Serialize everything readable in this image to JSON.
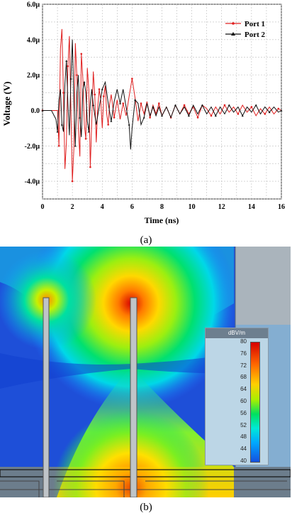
{
  "chart_data": {
    "type": "line",
    "xlabel": "Time (ns)",
    "ylabel": "Voltage (V)",
    "xlim": [
      0,
      16
    ],
    "ylim": [
      -5e-06,
      6e-06
    ],
    "x_ticks": [
      "0",
      "2",
      "4",
      "6",
      "8",
      "10",
      "12",
      "14",
      "16"
    ],
    "y_ticks": [
      "-4.0μ",
      "-2.0μ",
      "0.0",
      "2.0μ",
      "4.0μ",
      "6.0μ"
    ],
    "grid": true,
    "legend_position": "top-right",
    "series": [
      {
        "name": "Port 1",
        "color": "#e02020",
        "marker": "circle",
        "x": [
          0.0,
          0.6,
          1.0,
          1.1,
          1.2,
          1.3,
          1.4,
          1.5,
          1.6,
          1.7,
          1.8,
          1.9,
          2.0,
          2.1,
          2.2,
          2.3,
          2.4,
          2.5,
          2.6,
          2.7,
          2.8,
          2.9,
          3.0,
          3.1,
          3.2,
          3.3,
          3.4,
          3.5,
          3.6,
          3.7,
          3.8,
          3.9,
          4.0,
          4.1,
          4.2,
          4.3,
          4.4,
          4.5,
          4.6,
          4.8,
          5.0,
          5.2,
          5.4,
          5.6,
          5.8,
          6.0,
          6.2,
          6.4,
          6.6,
          6.8,
          7.0,
          7.2,
          7.4,
          7.6,
          7.8,
          8.0,
          8.3,
          8.6,
          8.9,
          9.2,
          9.5,
          9.8,
          10.1,
          10.4,
          10.7,
          11.0,
          11.3,
          11.6,
          11.9,
          12.2,
          12.5,
          12.8,
          13.1,
          13.4,
          13.7,
          14.0,
          14.3,
          14.6,
          14.9,
          15.2,
          15.5,
          15.8,
          16.0
        ],
        "y": [
          0.0,
          0.0,
          0.0,
          -2e-06,
          3.5e-06,
          4.6e-06,
          1e-06,
          -3.3e-06,
          -1.8e-06,
          2.5e-06,
          4.2e-06,
          2e-07,
          -4e-06,
          -2.2e-06,
          3.8e-06,
          2e-06,
          -1e-06,
          -2.6e-06,
          3.2e-06,
          1.8e-06,
          -8e-07,
          -1.6e-06,
          2.4e-06,
          1.2e-06,
          -3.2e-06,
          -6e-07,
          2.2e-06,
          9e-07,
          -1.8e-06,
          2e-07,
          1.2e-06,
          6e-07,
          -1e-06,
          8e-07,
          1.4e-06,
          -2e-07,
          -8e-07,
          4e-07,
          9e-07,
          -4e-07,
          6e-07,
          -5e-07,
          4e-07,
          -3e-07,
          8e-07,
          1.8e-06,
          7e-07,
          -6e-07,
          4e-07,
          -2e-07,
          5e-07,
          -4e-07,
          3e-07,
          -2e-07,
          4e-07,
          -3e-07,
          2e-07,
          -4e-07,
          3e-07,
          -2e-07,
          3e-07,
          -2e-07,
          2e-07,
          -4e-07,
          3e-07,
          1e-07,
          -3e-07,
          2e-07,
          -2e-07,
          3e-07,
          -1e-07,
          2e-07,
          -2e-07,
          3e-07,
          -1e-07,
          2e-07,
          -3e-07,
          1e-07,
          -2e-07,
          2e-07,
          -2e-07,
          1e-07,
          0.0
        ]
      },
      {
        "name": "Port 2",
        "color": "#111111",
        "marker": "triangle",
        "x": [
          0.0,
          0.6,
          0.9,
          1.0,
          1.1,
          1.2,
          1.3,
          1.4,
          1.5,
          1.6,
          1.7,
          1.8,
          1.9,
          2.0,
          2.1,
          2.2,
          2.3,
          2.4,
          2.5,
          2.6,
          2.7,
          2.8,
          2.9,
          3.0,
          3.1,
          3.2,
          3.3,
          3.4,
          3.6,
          3.8,
          4.0,
          4.2,
          4.4,
          4.6,
          4.8,
          5.0,
          5.2,
          5.4,
          5.6,
          5.8,
          5.9,
          6.0,
          6.2,
          6.4,
          6.6,
          6.8,
          7.0,
          7.2,
          7.4,
          7.6,
          7.8,
          8.0,
          8.3,
          8.6,
          8.9,
          9.2,
          9.5,
          9.8,
          10.1,
          10.4,
          10.7,
          11.0,
          11.3,
          11.6,
          11.9,
          12.2,
          12.5,
          12.8,
          13.1,
          13.4,
          13.7,
          14.0,
          14.3,
          14.6,
          14.9,
          15.2,
          15.5,
          15.8,
          16.0
        ],
        "y": [
          0.0,
          0.0,
          -5e-07,
          -1.2e-06,
          6e-07,
          1.2e-06,
          -8e-07,
          -1.2e-06,
          1.5e-06,
          2.8e-06,
          4e-07,
          -1.4e-06,
          1.8e-06,
          4e-06,
          5e-07,
          -2e-06,
          1e-06,
          2e-06,
          -4e-07,
          -1.5e-06,
          1.2e-06,
          1.6e-06,
          1e-06,
          -6e-07,
          -1.2e-06,
          4e-07,
          1.2e-06,
          3e-07,
          -8e-07,
          2e-07,
          1.2e-06,
          1.6e-06,
          4e-07,
          -6e-07,
          5e-07,
          1.2e-06,
          4e-07,
          1.2e-06,
          2e-07,
          -8e-07,
          -2.2e-06,
          -1e-06,
          6e-07,
          4e-07,
          -8e-07,
          -4e-07,
          4e-07,
          -3e-07,
          2e-07,
          -3e-07,
          2e-07,
          -3e-07,
          2e-07,
          -4e-07,
          3e-07,
          -2e-07,
          2e-07,
          -3e-07,
          3e-07,
          -2e-07,
          3e-07,
          -2e-07,
          2e-07,
          -3e-07,
          2e-07,
          -2e-07,
          3e-07,
          -1e-07,
          2e-07,
          -3e-07,
          2e-07,
          -1e-07,
          3e-07,
          -2e-07,
          2e-07,
          -1e-07,
          2e-07,
          -1e-07,
          0.0
        ]
      }
    ]
  },
  "captions": {
    "a": "(a)",
    "b": "(b)"
  },
  "field_plot": {
    "colorbar_title": "dBV/m",
    "colorbar_ticks": [
      "80",
      "76",
      "72",
      "68",
      "64",
      "60",
      "56",
      "52",
      "48",
      "44",
      "40"
    ],
    "colors": {
      "high": "#d60000",
      "mid": "#a8ef00",
      "low": "#1450e0"
    }
  }
}
